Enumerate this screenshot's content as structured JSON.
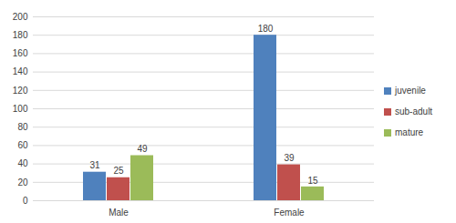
{
  "chart_data": {
    "type": "bar",
    "categories": [
      "Male",
      "Female"
    ],
    "series": [
      {
        "name": "juvenile",
        "color": "#4F81BD",
        "values": [
          31,
          180
        ]
      },
      {
        "name": "sub-adult",
        "color": "#C0504D",
        "values": [
          25,
          39
        ]
      },
      {
        "name": "mature",
        "color": "#9BBB59",
        "values": [
          49,
          15
        ]
      }
    ],
    "ylim": [
      0,
      200
    ],
    "yticks": [
      0,
      20,
      40,
      60,
      80,
      100,
      120,
      140,
      160,
      180,
      200
    ],
    "grid": true,
    "data_labels": true,
    "legend": "right"
  }
}
